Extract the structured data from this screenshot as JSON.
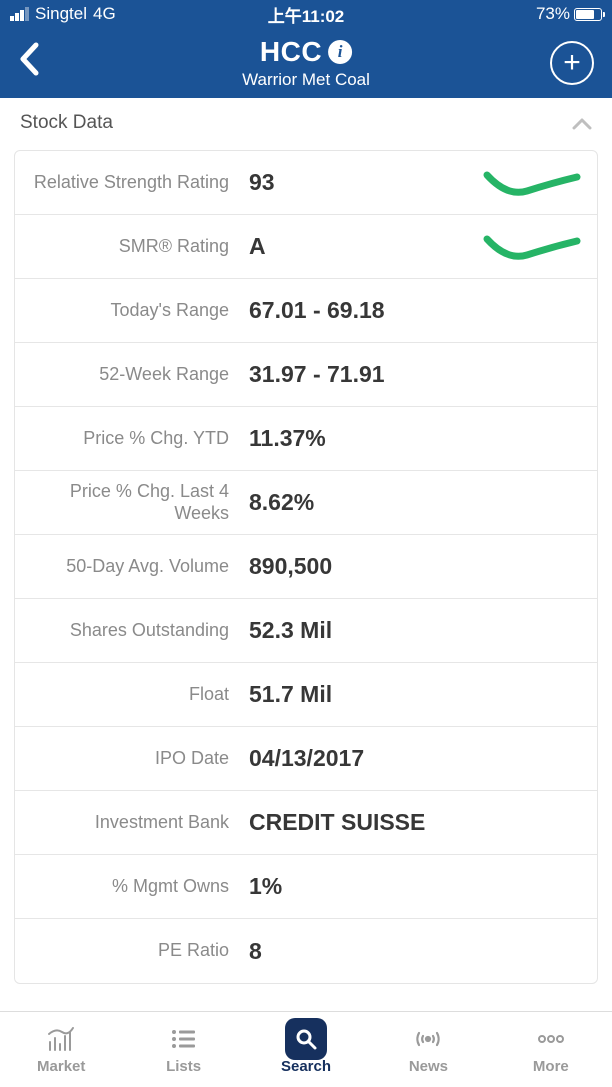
{
  "status": {
    "carrier": "Singtel",
    "network": "4G",
    "time": "上午11:02",
    "battery_pct": "73%",
    "battery_fill_pct": 73
  },
  "nav": {
    "ticker": "HCC",
    "company": "Warrior Met Coal"
  },
  "section_title": "Stock Data",
  "rows": [
    {
      "label": "Relative Strength Rating",
      "value": "93",
      "mark": true
    },
    {
      "label": "SMR® Rating",
      "value": "A",
      "mark": true
    },
    {
      "label": "Today's Range",
      "value": "67.01 - 69.18"
    },
    {
      "label": "52-Week Range",
      "value": "31.97 - 71.91"
    },
    {
      "label": "Price % Chg. YTD",
      "value": "11.37%"
    },
    {
      "label": "Price % Chg. Last 4 Weeks",
      "value": "8.62%"
    },
    {
      "label": "50-Day Avg. Volume",
      "value": "890,500"
    },
    {
      "label": "Shares Outstanding",
      "value": "52.3 Mil"
    },
    {
      "label": "Float",
      "value": "51.7 Mil"
    },
    {
      "label": "IPO Date",
      "value": "04/13/2017"
    },
    {
      "label": "Investment Bank",
      "value": "CREDIT SUISSE"
    },
    {
      "label": "% Mgmt Owns",
      "value": "1%"
    },
    {
      "label": "PE Ratio",
      "value": "8"
    }
  ],
  "annot_color": "#26b466",
  "tabs": {
    "market": "Market",
    "lists": "Lists",
    "search": "Search",
    "news": "News",
    "more": "More",
    "active": "search"
  },
  "colors": {
    "header_bg": "#1b5396",
    "active_tab": "#16305e",
    "label_gray": "#8a8a8a",
    "value_dark": "#373737",
    "divider": "#e6e6e6"
  }
}
